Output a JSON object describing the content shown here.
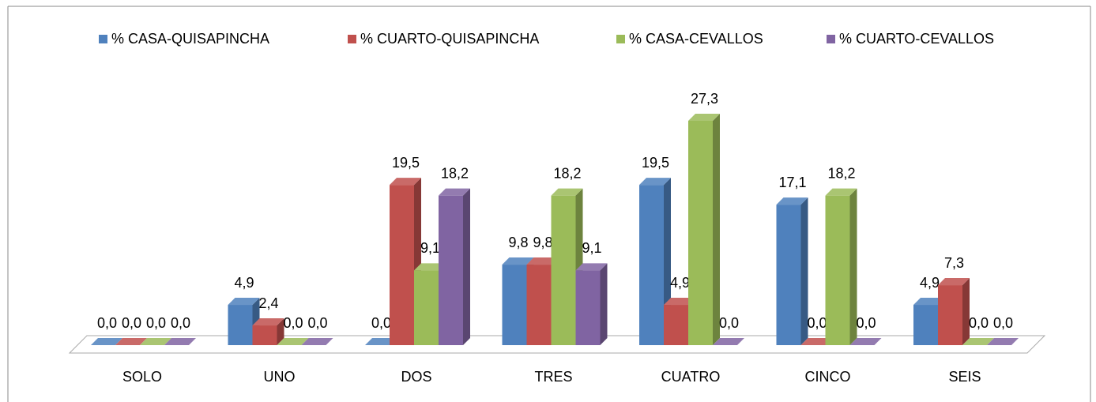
{
  "chart_data": {
    "type": "bar3d",
    "categories": [
      "SOLO",
      "UNO",
      "DOS",
      "TRES",
      "CUATRO",
      "CINCO",
      "SEIS"
    ],
    "series": [
      {
        "name": "% CASA-QUISAPINCHA",
        "color": "#4f81bd",
        "values": [
          0.0,
          4.9,
          0.0,
          9.8,
          19.5,
          17.1,
          4.9
        ],
        "value_labels": [
          "0,0",
          "4,9",
          "0,0",
          "9,8",
          "19,5",
          "17,1",
          "4,9"
        ]
      },
      {
        "name": "% CUARTO-QUISAPINCHA",
        "color": "#c0504d",
        "values": [
          0.0,
          2.4,
          19.5,
          9.8,
          4.9,
          0.0,
          7.3
        ],
        "value_labels": [
          "0,0",
          "2,4",
          "19,5",
          "9,8",
          "4,9",
          "0,0",
          "7,3"
        ]
      },
      {
        "name": "% CASA-CEVALLOS",
        "color": "#9bbb59",
        "values": [
          0.0,
          0.0,
          9.1,
          18.2,
          27.3,
          18.2,
          0.0
        ],
        "value_labels": [
          "0,0",
          "0,0",
          "9,1",
          "18,2",
          "27,3",
          "18,2",
          "0,0"
        ]
      },
      {
        "name": "% CUARTO-CEVALLOS",
        "color": "#8064a2",
        "values": [
          0.0,
          0.0,
          18.2,
          9.1,
          0.0,
          0.0,
          0.0
        ],
        "value_labels": [
          "0,0",
          "0,0",
          "18,2",
          "9,1",
          "0,0",
          "0,0",
          "0,0"
        ]
      }
    ],
    "legend": "top"
  }
}
